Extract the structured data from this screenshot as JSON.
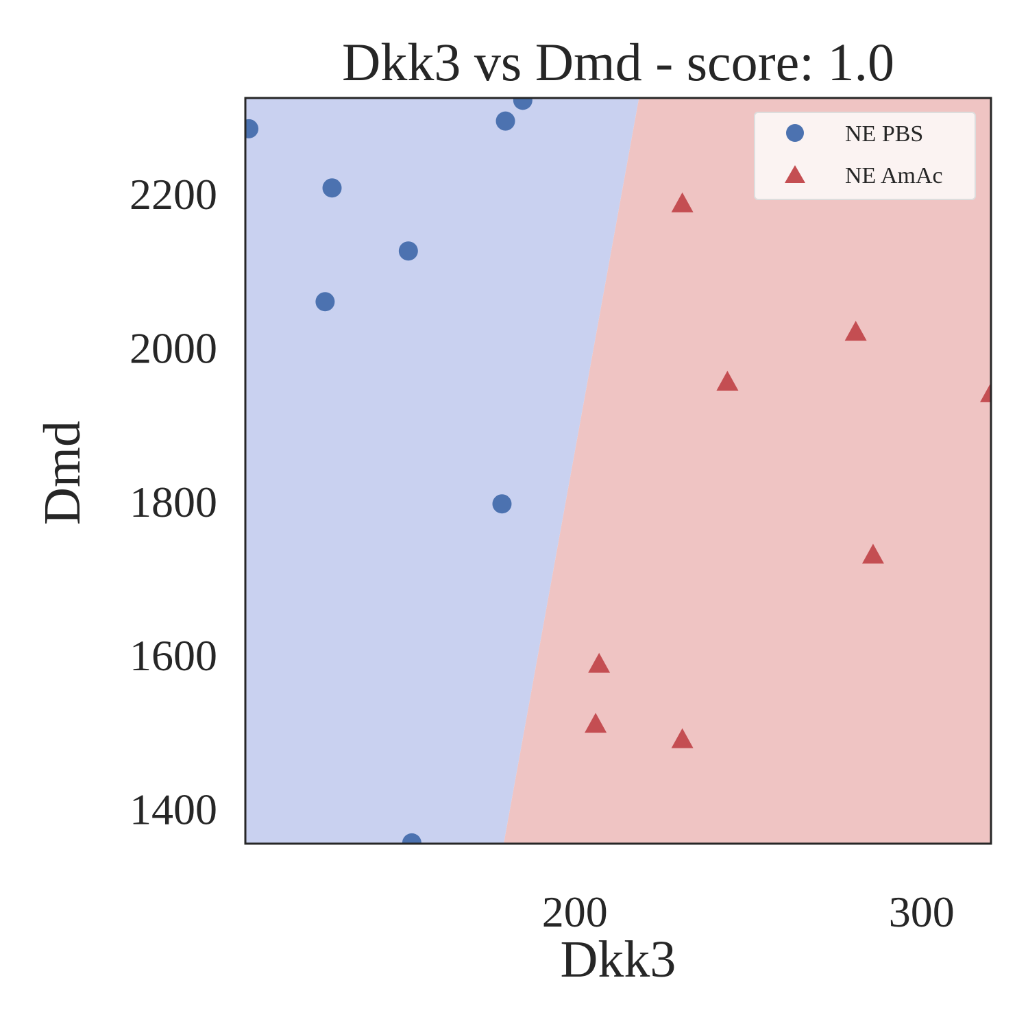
{
  "chart_data": {
    "type": "scatter",
    "title": "Dkk3 vs Dmd - score: 1.0",
    "xlabel": "Dkk3",
    "ylabel": "Dmd",
    "xlim": [
      105,
      320
    ],
    "ylim": [
      1355,
      2325
    ],
    "xticks": [
      200,
      300
    ],
    "xtick_labels": [
      "200",
      "300"
    ],
    "yticks": [
      1400,
      1600,
      1800,
      2000,
      2200
    ],
    "ytick_labels": [
      "1400",
      "1600",
      "1800",
      "2000",
      "2200"
    ],
    "grid": false,
    "legend_position": "top-right",
    "decision_regions": {
      "boundary": [
        [
          179.5,
          1355
        ],
        [
          218.5,
          2325
        ]
      ],
      "left_class": "NE PBS",
      "right_class": "NE AmAc",
      "colors": {
        "NE PBS": "#c9d1f0",
        "NE AmAc": "#efc4c3"
      }
    },
    "series": [
      {
        "name": "NE PBS",
        "marker": "circle",
        "color": "#4c72b0",
        "points": [
          [
            106,
            2285
          ],
          [
            130,
            2208
          ],
          [
            128,
            2060
          ],
          [
            152,
            2126
          ],
          [
            180,
            2295
          ],
          [
            185,
            2322
          ],
          [
            179,
            1797
          ],
          [
            153,
            1356
          ]
        ]
      },
      {
        "name": "NE AmAc",
        "marker": "triangle",
        "color": "#c44e52",
        "points": [
          [
            231,
            2187
          ],
          [
            281,
            2020
          ],
          [
            244,
            1955
          ],
          [
            320,
            1940
          ],
          [
            286,
            1730
          ],
          [
            207,
            1588
          ],
          [
            206,
            1510
          ],
          [
            231,
            1490
          ]
        ]
      }
    ]
  }
}
